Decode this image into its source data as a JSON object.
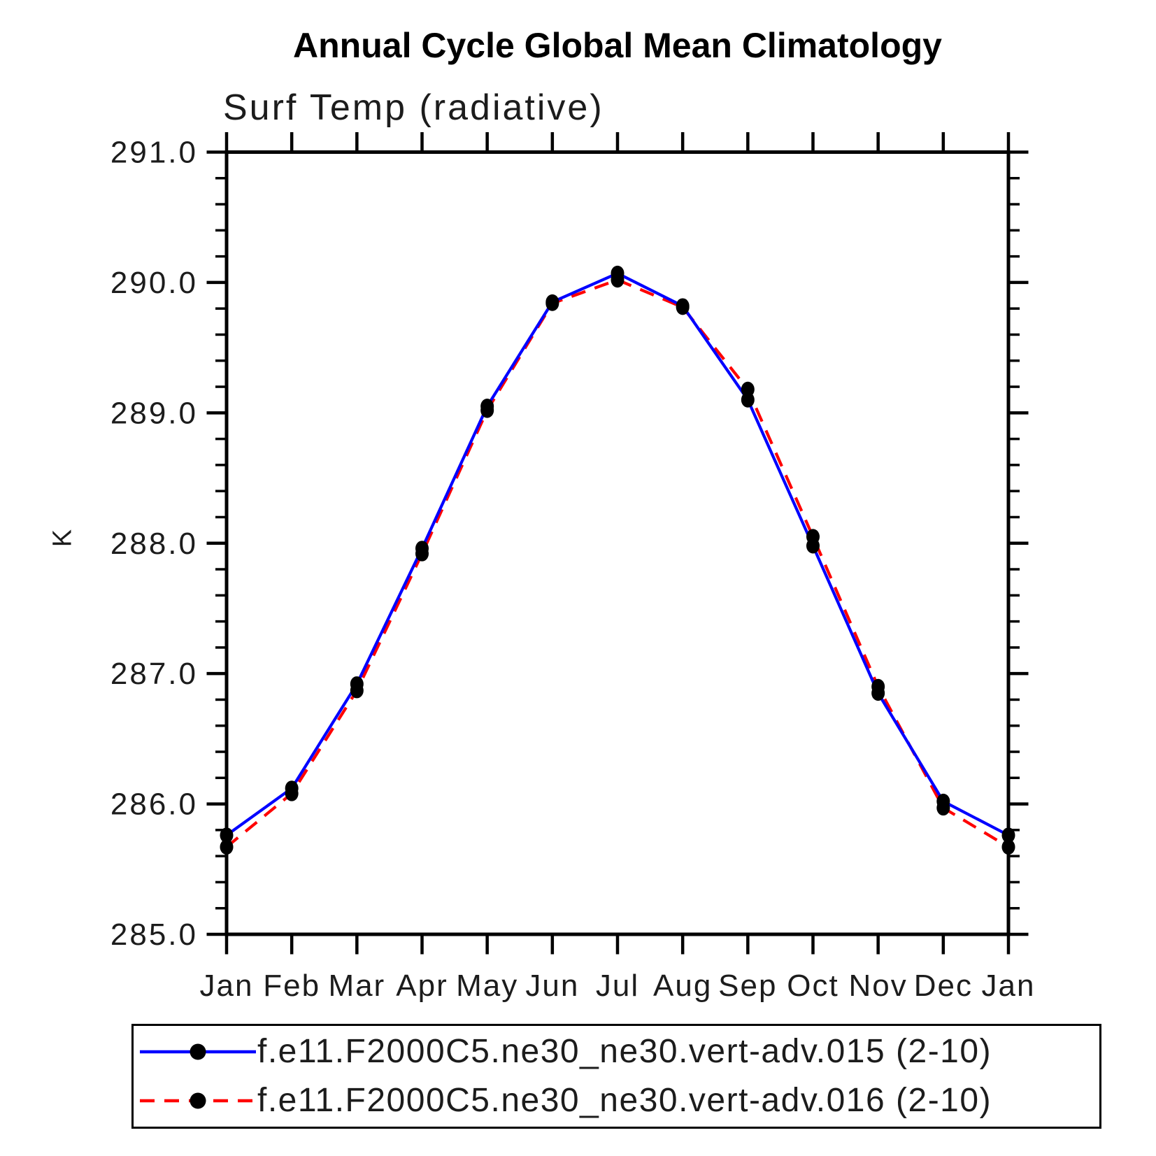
{
  "title": "Annual Cycle Global Mean Climatology",
  "subtitle": "Surf Temp (radiative)",
  "y_axis_title": "K",
  "legend": {
    "entries": [
      {
        "label": "f.e11.F2000C5.ne30_ne30.vert-adv.015 (2-10)",
        "color": "#0000ff",
        "style": "solid",
        "marker_color": "#000000"
      },
      {
        "label": "f.e11.F2000C5.ne30_ne30.vert-adv.016 (2-10)",
        "color": "#ff0000",
        "style": "dashed",
        "marker_color": "#000000"
      }
    ],
    "position": "bottom"
  },
  "chart_data": {
    "type": "line",
    "title": "Annual Cycle Global Mean Climatology",
    "subtitle": "Surf Temp (radiative)",
    "xlabel": "",
    "ylabel": "K",
    "categories": [
      "Jan",
      "Feb",
      "Mar",
      "Apr",
      "May",
      "Jun",
      "Jul",
      "Aug",
      "Sep",
      "Oct",
      "Nov",
      "Dec",
      "Jan"
    ],
    "series": [
      {
        "name": "f.e11.F2000C5.ne30_ne30.vert-adv.015 (2-10)",
        "color": "#0000ff",
        "line_style": "solid",
        "marker": "filled-circle",
        "marker_color": "#000000",
        "values": [
          285.76,
          286.12,
          286.92,
          287.96,
          289.05,
          289.85,
          290.07,
          289.82,
          289.1,
          287.98,
          286.85,
          286.02,
          285.76
        ]
      },
      {
        "name": "f.e11.F2000C5.ne30_ne30.vert-adv.016 (2-10)",
        "color": "#ff0000",
        "line_style": "dashed",
        "marker": "filled-circle",
        "marker_color": "#000000",
        "values": [
          285.67,
          286.08,
          286.87,
          287.92,
          289.02,
          289.84,
          290.02,
          289.81,
          289.18,
          288.05,
          286.9,
          285.97,
          285.67
        ]
      }
    ],
    "ylim": [
      285.0,
      291.0
    ],
    "ytick_labels": [
      "285.0",
      "286.0",
      "287.0",
      "288.0",
      "289.0",
      "290.0",
      "291.0"
    ],
    "ytick_step": 1.0,
    "minor_ytick_step": 0.2,
    "grid": false,
    "legend_position": "bottom"
  }
}
